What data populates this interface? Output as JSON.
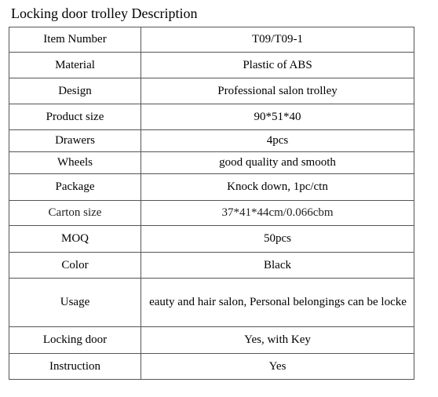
{
  "title": "Locking door trolley Description",
  "rows": [
    {
      "label": "Item Number",
      "value": "T09/T09-1",
      "height": 32
    },
    {
      "label": "Material",
      "value": "Plastic of ABS",
      "height": 33
    },
    {
      "label": "Design",
      "value": "Professional salon trolley",
      "height": 33
    },
    {
      "label": "Product size",
      "value": "90*51*40",
      "height": 33
    },
    {
      "label": "Drawers",
      "value": "4pcs",
      "height": 28
    },
    {
      "label": "Wheels",
      "value": "good quality and smooth",
      "height": 28
    },
    {
      "label": "Package",
      "value": "Knock down, 1pc/ctn",
      "height": 34
    },
    {
      "label": "Carton size",
      "value": "37*41*44cm/0.066cbm",
      "height": 32
    },
    {
      "label": "MOQ",
      "value": "50pcs",
      "height": 34
    },
    {
      "label": "Color",
      "value": "Black",
      "height": 33
    },
    {
      "label": "Usage",
      "value": "eauty and hair salon, Personal belongings can be locke",
      "height": 62
    },
    {
      "label": "Locking door",
      "value": "Yes, with Key",
      "height": 34
    },
    {
      "label": "Instruction",
      "value": "Yes",
      "height": 33
    }
  ]
}
